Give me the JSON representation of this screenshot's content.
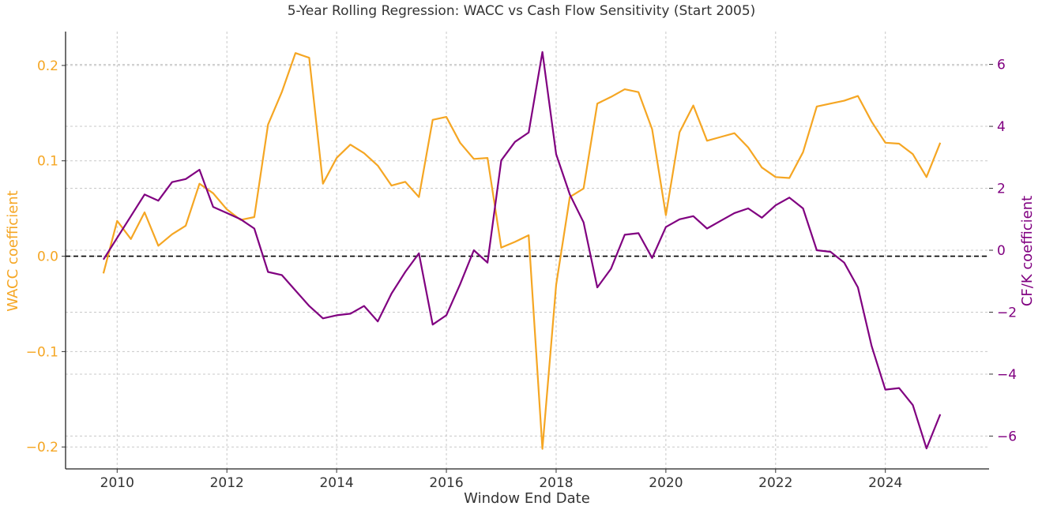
{
  "chart_data": {
    "type": "line",
    "title": "5-Year Rolling Regression: WACC vs Cash Flow Sensitivity (Start 2005)",
    "xlabel": "Window End Date",
    "ylabel_left": "WACC coefficient",
    "ylabel_right": "CF/K coefficient",
    "xlim": [
      2009.06,
      2025.89
    ],
    "ylim_left": [
      -0.223,
      0.2355
    ],
    "ylim_right": [
      -7.06,
      7.06
    ],
    "x_ticks": [
      "2010",
      "2012",
      "2014",
      "2016",
      "2018",
      "2020",
      "2022",
      "2024"
    ],
    "y_ticks_left": [
      "0.2",
      "0.1",
      "0.0",
      "−0.1",
      "−0.2"
    ],
    "y_ticks_right": [
      "6",
      "4",
      "2",
      "0",
      "−2",
      "−4",
      "−6"
    ],
    "grid": true,
    "reference_line": {
      "axis": "left",
      "y": 0,
      "style": "dashed",
      "color": "#000000"
    },
    "x": [
      2009.75,
      2010.0,
      2010.25,
      2010.5,
      2010.75,
      2011.0,
      2011.25,
      2011.5,
      2011.75,
      2012.0,
      2012.25,
      2012.5,
      2012.75,
      2013.0,
      2013.25,
      2013.5,
      2013.75,
      2014.0,
      2014.25,
      2014.5,
      2014.75,
      2015.0,
      2015.25,
      2015.5,
      2015.75,
      2016.0,
      2016.25,
      2016.5,
      2016.75,
      2017.0,
      2017.25,
      2017.5,
      2017.75,
      2018.0,
      2018.25,
      2018.5,
      2018.75,
      2019.0,
      2019.25,
      2019.5,
      2019.75,
      2020.0,
      2020.25,
      2020.5,
      2020.75,
      2021.0,
      2021.25,
      2021.5,
      2021.75,
      2022.0,
      2022.25,
      2022.5,
      2022.75,
      2023.0,
      2023.25,
      2023.5,
      2023.75,
      2024.0,
      2024.25,
      2024.5,
      2024.75,
      2025.0
    ],
    "series": [
      {
        "axis": "left",
        "color": "#F5A623",
        "values": [
          -0.018,
          0.037,
          0.018,
          0.046,
          0.011,
          0.023,
          0.032,
          0.076,
          0.066,
          0.049,
          0.038,
          0.041,
          0.138,
          0.172,
          0.213,
          0.208,
          0.076,
          0.103,
          0.117,
          0.108,
          0.095,
          0.074,
          0.078,
          0.062,
          0.143,
          0.146,
          0.119,
          0.102,
          0.103,
          0.009,
          0.015,
          0.022,
          -0.202,
          -0.03,
          0.062,
          0.071,
          0.16,
          0.167,
          0.175,
          0.172,
          0.133,
          0.043,
          0.13,
          0.158,
          0.121,
          0.125,
          0.129,
          0.114,
          0.093,
          0.083,
          0.082,
          0.109,
          0.157,
          0.16,
          0.163,
          0.168,
          0.141,
          0.119,
          0.118,
          0.107,
          0.083,
          0.119
        ]
      },
      {
        "axis": "right",
        "color": "#800080",
        "values": [
          -0.3,
          0.4,
          1.1,
          1.8,
          1.6,
          2.2,
          2.3,
          2.6,
          1.4,
          1.2,
          1.0,
          0.7,
          -0.7,
          -0.8,
          -1.3,
          -1.8,
          -2.2,
          -2.1,
          -2.05,
          -1.8,
          -2.3,
          -1.4,
          -0.7,
          -0.1,
          -2.4,
          -2.1,
          -1.1,
          0.0,
          -0.4,
          2.9,
          3.5,
          3.8,
          6.4,
          3.1,
          1.8,
          0.9,
          -1.2,
          -0.6,
          0.5,
          0.55,
          -0.25,
          0.75,
          1.0,
          1.1,
          0.7,
          0.95,
          1.2,
          1.35,
          1.05,
          1.45,
          1.7,
          1.35,
          0.0,
          -0.05,
          -0.4,
          -1.2,
          -3.1,
          -4.5,
          -4.45,
          -5.0,
          -6.4,
          -5.3
        ]
      }
    ]
  }
}
